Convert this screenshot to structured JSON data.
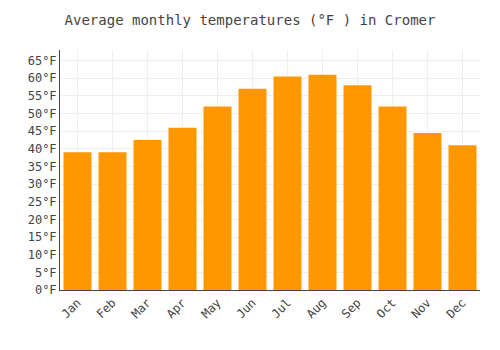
{
  "chart_data": {
    "type": "bar",
    "title": "Average monthly temperatures (°F ) in Cromer",
    "categories": [
      "Jan",
      "Feb",
      "Mar",
      "Apr",
      "May",
      "Jun",
      "Jul",
      "Aug",
      "Sep",
      "Oct",
      "Nov",
      "Dec"
    ],
    "values": [
      39,
      39,
      42.5,
      46,
      52,
      57,
      60.5,
      61,
      58,
      52,
      44.5,
      41
    ],
    "color": "#FF9800",
    "ylim": [
      0,
      68
    ],
    "yticks": [
      {
        "value": 0,
        "label": "0°F"
      },
      {
        "value": 5,
        "label": "5°F"
      },
      {
        "value": 10,
        "label": "10°F"
      },
      {
        "value": 15,
        "label": "15°F"
      },
      {
        "value": 20,
        "label": "20°F"
      },
      {
        "value": 25,
        "label": "25°F"
      },
      {
        "value": 30,
        "label": "30°F"
      },
      {
        "value": 35,
        "label": "35°F"
      },
      {
        "value": 40,
        "label": "40°F"
      },
      {
        "value": 45,
        "label": "45°F"
      },
      {
        "value": 50,
        "label": "50°F"
      },
      {
        "value": 55,
        "label": "55°F"
      },
      {
        "value": 60,
        "label": "60°F"
      },
      {
        "value": 65,
        "label": "65°F"
      }
    ],
    "grid": true
  }
}
